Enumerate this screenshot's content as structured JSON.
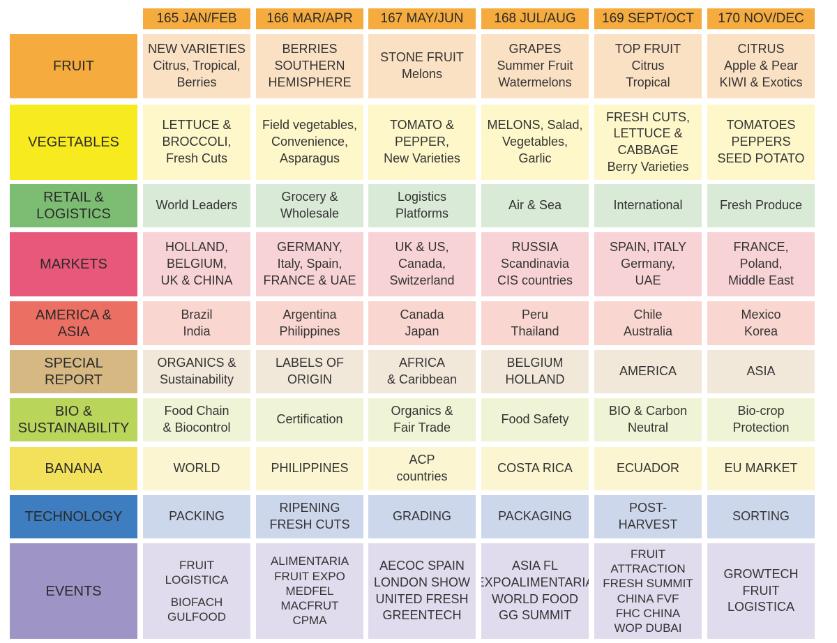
{
  "headers": [
    "165 JAN/FEB",
    "166 MAR/APR",
    "167 MAY/JUN",
    "168 JUL/AUG",
    "169 SEPT/OCT",
    "170 NOV/DEC"
  ],
  "rows": [
    {
      "label": [
        "FRUIT"
      ],
      "label_color": "#f5ab3d",
      "cell_color": "#fbe1c4",
      "cells": [
        [
          "NEW VARIETIES",
          "Citrus, Tropical,",
          "Berries"
        ],
        [
          "BERRIES",
          "SOUTHERN",
          "HEMISPHERE"
        ],
        [
          "STONE FRUIT",
          "Melons"
        ],
        [
          "GRAPES",
          "Summer Fruit",
          "Watermelons"
        ],
        [
          "TOP FRUIT",
          "Citrus",
          "Tropical"
        ],
        [
          "CITRUS",
          "Apple & Pear",
          "KIWI & Exotics"
        ]
      ]
    },
    {
      "label": [
        "VEGETABLES"
      ],
      "label_color": "#f7ea1f",
      "cell_color": "#fdf7c9",
      "cells": [
        [
          "LETTUCE &",
          "BROCCOLI,",
          "Fresh Cuts"
        ],
        [
          "Field vegetables,",
          "Convenience,",
          "Asparagus"
        ],
        [
          "TOMATO &",
          "PEPPER,",
          "New Varieties"
        ],
        [
          "MELONS, Salad,",
          "Vegetables,",
          "Garlic"
        ],
        [
          "FRESH CUTS,",
          "LETTUCE &",
          "CABBAGE",
          "Berry Varieties"
        ],
        [
          "TOMATOES",
          "PEPPERS",
          "SEED POTATO"
        ]
      ]
    },
    {
      "label": [
        "RETAIL &",
        "LOGISTICS"
      ],
      "label_color": "#7cbd73",
      "cell_color": "#d9ebd6",
      "cells": [
        [
          "World Leaders"
        ],
        [
          "Grocery &",
          "Wholesale"
        ],
        [
          "Logistics",
          "Platforms"
        ],
        [
          "Air & Sea"
        ],
        [
          "International"
        ],
        [
          "Fresh Produce"
        ]
      ]
    },
    {
      "label": [
        "MARKETS"
      ],
      "label_color": "#e8587a",
      "cell_color": "#f8d3d6",
      "cells": [
        [
          "HOLLAND,",
          "BELGIUM,",
          "UK & CHINA"
        ],
        [
          "GERMANY,",
          "Italy, Spain,",
          "FRANCE & UAE"
        ],
        [
          "UK & US,",
          "Canada,",
          "Switzerland"
        ],
        [
          "RUSSIA",
          "Scandinavia",
          "CIS countries"
        ],
        [
          "SPAIN, ITALY",
          "Germany,",
          "UAE"
        ],
        [
          "FRANCE,",
          "Poland,",
          "Middle East"
        ]
      ]
    },
    {
      "label": [
        "AMERICA &",
        "ASIA"
      ],
      "label_color": "#ec6f63",
      "cell_color": "#f9d6d0",
      "cells": [
        [
          "Brazil",
          "India"
        ],
        [
          "Argentina",
          "Philippines"
        ],
        [
          "Canada",
          "Japan"
        ],
        [
          "Peru",
          "Thailand"
        ],
        [
          "Chile",
          "Australia"
        ],
        [
          "Mexico",
          "Korea"
        ]
      ]
    },
    {
      "label": [
        "SPECIAL",
        "REPORT"
      ],
      "label_color": "#d6b883",
      "cell_color": "#f2e8da",
      "cells": [
        [
          "ORGANICS &",
          "Sustainability"
        ],
        [
          "LABELS OF",
          "ORIGIN"
        ],
        [
          "AFRICA",
          "& Caribbean"
        ],
        [
          "BELGIUM",
          "HOLLAND"
        ],
        [
          "AMERICA"
        ],
        [
          "ASIA"
        ]
      ]
    },
    {
      "label": [
        "BIO &",
        "SUSTAINABILITY"
      ],
      "label_color": "#b9d55a",
      "cell_color": "#eef4d5",
      "cells": [
        [
          "Food Chain",
          "& Biocontrol"
        ],
        [
          "Certification"
        ],
        [
          "Organics &",
          "Fair Trade"
        ],
        [
          "Food Safety"
        ],
        [
          "BIO & Carbon",
          "Neutral"
        ],
        [
          "Bio-crop",
          "Protection"
        ]
      ]
    },
    {
      "label": [
        "BANANA"
      ],
      "label_color": "#f3e15c",
      "cell_color": "#fbf6d1",
      "cells": [
        [
          "WORLD"
        ],
        [
          "PHILIPPINES"
        ],
        [
          "ACP",
          "countries"
        ],
        [
          "COSTA RICA"
        ],
        [
          "ECUADOR"
        ],
        [
          "EU MARKET"
        ]
      ]
    },
    {
      "label": [
        "TECHNOLOGY"
      ],
      "label_color": "#3e7dbf",
      "cell_color": "#cdd7ec",
      "cells": [
        [
          "PACKING"
        ],
        [
          "RIPENING",
          "FRESH CUTS"
        ],
        [
          "GRADING"
        ],
        [
          "PACKAGING"
        ],
        [
          "POST-",
          "HARVEST"
        ],
        [
          "SORTING"
        ]
      ]
    },
    {
      "label": [
        "EVENTS"
      ],
      "label_color": "#9f94c6",
      "cell_color": "#e0dcee",
      "cells": [
        [
          "FRUIT",
          "LOGISTICA",
          "",
          "BIOFACH",
          "GULFOOD"
        ],
        [
          "ALIMENTARIA",
          "FRUIT EXPO",
          "MEDFEL",
          "MACFRUT",
          "CPMA"
        ],
        [
          "AECOC SPAIN",
          "LONDON SHOW",
          "UNITED FRESH",
          "GREENTECH"
        ],
        [
          "ASIA FL",
          "EXPOALIMENTARIA",
          "WORLD FOOD",
          "GG SUMMIT"
        ],
        [
          "FRUIT",
          "ATTRACTION",
          "FRESH SUMMIT",
          "CHINA FVF",
          "FHC CHINA",
          "WOP DUBAI"
        ],
        [
          "GROWTECH",
          "FRUIT",
          "LOGISTICA"
        ]
      ]
    }
  ]
}
